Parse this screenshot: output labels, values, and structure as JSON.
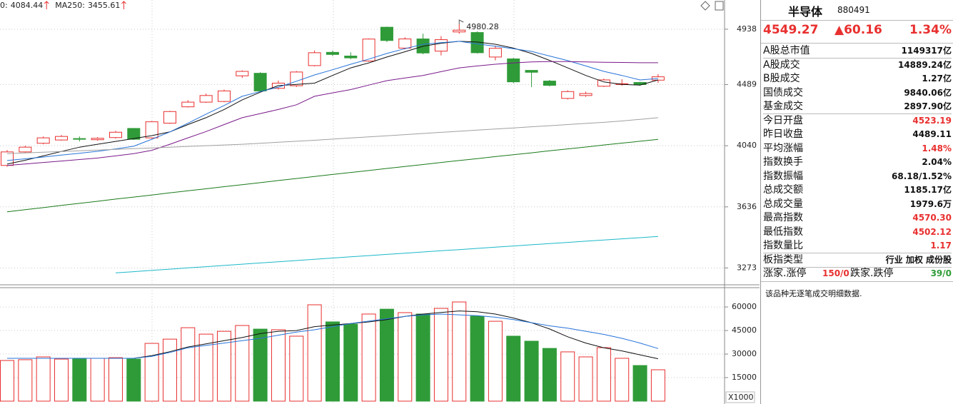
{
  "chart_data": [
    {
      "type": "candlestick",
      "open": [
        3905,
        3997,
        4057,
        4080,
        4090,
        4082,
        4097,
        4162,
        4095,
        4200,
        4320,
        4355,
        4360,
        4557,
        4577,
        4460,
        4480,
        4638,
        4745,
        4715,
        4675,
        4955,
        4780,
        4856,
        4755,
        4915,
        4910,
        4707,
        4692,
        4600,
        4516,
        4383,
        4405,
        4476,
        4490,
        4505,
        4523.19
      ],
      "high": [
        4010,
        4040,
        4105,
        4115,
        4105,
        4100,
        4145,
        4165,
        4215,
        4290,
        4370,
        4420,
        4450,
        4600,
        4585,
        4520,
        4595,
        4760,
        4760,
        4745,
        4860,
        4960,
        4870,
        4900,
        4880,
        4980.28,
        4920,
        4800,
        4700,
        4600,
        4525,
        4445,
        4435,
        4535,
        4530,
        4510,
        4570.3
      ],
      "low": [
        3897,
        3990,
        4050,
        4075,
        4070,
        4075,
        4090,
        4080,
        4090,
        4195,
        4315,
        4350,
        4355,
        4540,
        4430,
        4450,
        4470,
        4632,
        4715,
        4690,
        4670,
        4830,
        4770,
        4730,
        4720,
        4900,
        4735,
        4680,
        4500,
        4470,
        4475,
        4375,
        4395,
        4470,
        4480,
        4480,
        4502.12
      ],
      "close": [
        3997,
        4030,
        4095,
        4105,
        4085,
        4092,
        4135,
        4085,
        4210,
        4285,
        4355,
        4405,
        4440,
        4592,
        4440,
        4500,
        4587,
        4742,
        4728,
        4700,
        4855,
        4843,
        4856,
        4740,
        4850,
        4930,
        4742,
        4778,
        4510,
        4585,
        4483,
        4435,
        4420,
        4525,
        4495,
        4489.11,
        4549.27
      ],
      "up_color": "#e8302f",
      "down_color": "#2f9b38",
      "ylim": [
        3183,
        5193
      ],
      "log_scale": true,
      "yticks": [
        4938,
        4489,
        4040,
        3636,
        3273
      ],
      "grid": true,
      "max_label": 4980.28,
      "lines": [
        {
          "color": "#111111",
          "values": [
            3914,
            3940,
            3970,
            4000,
            4030,
            4050,
            4070,
            4090,
            4111,
            4137,
            4190,
            4240,
            4300,
            4372,
            4430,
            4481,
            4490,
            4500,
            4560,
            4620,
            4660,
            4707,
            4750,
            4795,
            4820,
            4836,
            4830,
            4812,
            4780,
            4736,
            4680,
            4620,
            4560,
            4509,
            4490,
            4485,
            4525
          ]
        },
        {
          "color": "#2673d9",
          "values": [
            3938,
            3950,
            3962,
            3975,
            3988,
            4001,
            4018,
            4036,
            4085,
            4137,
            4200,
            4266,
            4330,
            4399,
            4435,
            4469,
            4515,
            4564,
            4605,
            4649,
            4690,
            4736,
            4775,
            4812,
            4825,
            4836,
            4815,
            4795,
            4775,
            4753,
            4715,
            4678,
            4635,
            4592,
            4560,
            4525,
            4536
          ]
        },
        {
          "color": "#7a1a8a",
          "values": [
            3905,
            3915,
            3925,
            3935,
            3945,
            3955,
            3970,
            3985,
            4008,
            4050,
            4095,
            4140,
            4190,
            4240,
            4270,
            4300,
            4335,
            4399,
            4425,
            4450,
            4485,
            4519,
            4540,
            4560,
            4590,
            4620,
            4635,
            4649,
            4660,
            4667,
            4670,
            4670,
            4668,
            4665,
            4663,
            4661,
            4661
          ]
        },
        {
          "color": "#a0a0a0",
          "values": [
            3985,
            3990,
            3995,
            4000,
            4005,
            4010,
            4015,
            4020,
            4025,
            4030,
            4035,
            4040,
            4045,
            4050,
            4057,
            4064,
            4071,
            4078,
            4086,
            4094,
            4102,
            4110,
            4118,
            4126,
            4134,
            4142,
            4150,
            4158,
            4166,
            4174,
            4182,
            4190,
            4198,
            4206,
            4216,
            4228,
            4240
          ]
        },
        {
          "color": "#1a7a1a",
          "values": [
            3605,
            3618,
            3631,
            3645,
            3658,
            3671,
            3685,
            3698,
            3711,
            3725,
            3738,
            3751,
            3765,
            3778,
            3791,
            3805,
            3818,
            3831,
            3845,
            3858,
            3871,
            3885,
            3898,
            3911,
            3925,
            3938,
            3951,
            3965,
            3978,
            3991,
            4005,
            4018,
            4031,
            4045,
            4058,
            4071,
            4084.44
          ]
        },
        {
          "color": "#1bb8c8",
          "values": [
            null,
            null,
            null,
            null,
            null,
            null,
            3245,
            3252,
            3259,
            3266,
            3273,
            3280,
            3287,
            3294,
            3301,
            3308,
            3315,
            3322,
            3329,
            3336,
            3343,
            3350,
            3357,
            3364,
            3371,
            3378,
            3385,
            3392,
            3399,
            3406,
            3413,
            3420,
            3427,
            3434,
            3441,
            3448,
            3455.61
          ]
        }
      ],
      "legend": [
        {
          "label": "0:",
          "value": 4084.44,
          "color": "#1a4a1a"
        },
        {
          "label": "MA250:",
          "value": 3455.61,
          "color": "#1a9aaa"
        }
      ]
    },
    {
      "type": "bar",
      "values": [
        25900,
        26400,
        28200,
        26800,
        27300,
        27300,
        27700,
        26800,
        36800,
        39500,
        46800,
        42700,
        44500,
        48200,
        45900,
        45500,
        41400,
        61400,
        50500,
        49100,
        55500,
        58600,
        56400,
        55500,
        59100,
        63200,
        54100,
        50900,
        41400,
        38200,
        33600,
        31400,
        28200,
        34100,
        27300,
        22700,
        20000
      ],
      "ylim": [
        0,
        71400
      ],
      "yticks": [
        60000,
        45000,
        30000,
        15000
      ],
      "grid": true,
      "unit_label": "X1000",
      "lines": [
        {
          "color": "#111111",
          "values": [
            27300,
            27300,
            27300,
            27300,
            27300,
            27300,
            27300,
            27300,
            29000,
            31500,
            34500,
            36500,
            38500,
            40500,
            43000,
            44500,
            45000,
            47500,
            48500,
            49500,
            50500,
            52000,
            54000,
            55500,
            56500,
            57500,
            57000,
            55500,
            53000,
            50000,
            46000,
            41000,
            37000,
            34000,
            32000,
            29500,
            27000
          ]
        },
        {
          "color": "#2673d9",
          "values": [
            27300,
            27300,
            27300,
            27300,
            27300,
            27300,
            27300,
            27300,
            28500,
            31000,
            34000,
            35500,
            37000,
            38500,
            40000,
            42000,
            44000,
            45500,
            47500,
            49500,
            51000,
            52500,
            54000,
            55000,
            55500,
            55000,
            54500,
            53500,
            52000,
            50000,
            48000,
            46500,
            44500,
            42500,
            40000,
            37000,
            33500
          ]
        }
      ]
    }
  ],
  "panel": {
    "title": "半导体",
    "code": "880491",
    "price": "4549.27",
    "change": "▲60.16",
    "percent": "1.34%",
    "rows": [
      {
        "label": "A股总市值",
        "value": "1149317亿",
        "color": "#111111"
      },
      {
        "label": "A股成交",
        "value": "14889.24亿",
        "color": "#111111"
      },
      {
        "label": "B股成交",
        "value": "1.27亿",
        "color": "#111111"
      },
      {
        "label": "国债成交",
        "value": "9840.06亿",
        "color": "#111111"
      },
      {
        "label": "基金成交",
        "value": "2897.90亿",
        "color": "#111111"
      },
      {
        "label": "今日开盘",
        "value": "4523.19",
        "color": "#e8302f"
      },
      {
        "label": "昨日收盘",
        "value": "4489.11",
        "color": "#111111"
      },
      {
        "label": "平均涨幅",
        "value": "1.48%",
        "color": "#e8302f"
      },
      {
        "label": "指数换手",
        "value": "2.04%",
        "color": "#111111"
      },
      {
        "label": "指数振幅",
        "value": "68.18/1.52%",
        "color": "#111111"
      },
      {
        "label": "总成交额",
        "value": "1185.17亿",
        "color": "#111111"
      },
      {
        "label": "总成交量",
        "value": "1979.6万",
        "color": "#111111"
      },
      {
        "label": "最高指数",
        "value": "4570.30",
        "color": "#e8302f"
      },
      {
        "label": "最低指数",
        "value": "4502.12",
        "color": "#e8302f"
      },
      {
        "label": "指数量比",
        "value": "1.17",
        "color": "#e8302f"
      },
      {
        "label": "板指类型",
        "value": "行业 加权 成份股",
        "color": "#111111"
      }
    ],
    "breadth": {
      "up_label": "涨家.涨停",
      "up_value": "150/0",
      "down_label": "跌家.跌停",
      "down_value": "39/0"
    },
    "note": "该品种无逐笔成交明细数据."
  }
}
